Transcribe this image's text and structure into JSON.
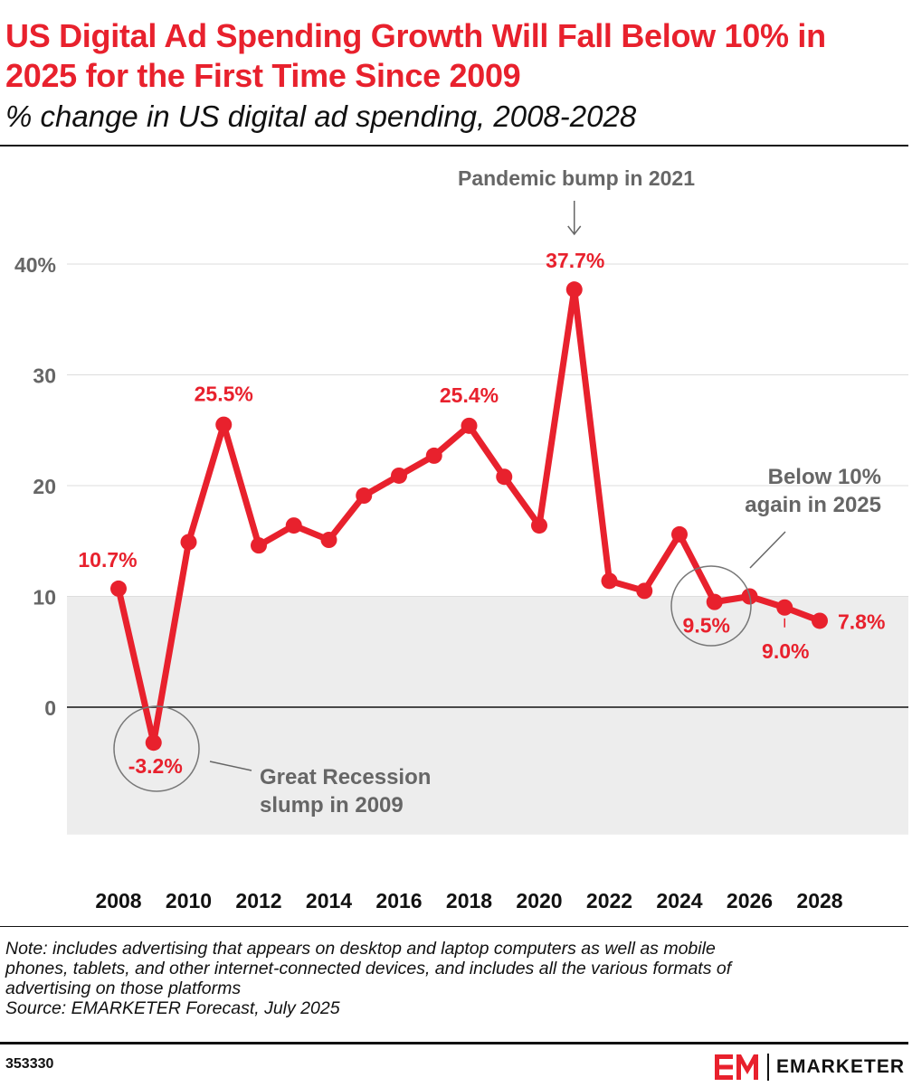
{
  "header": {
    "title": "US Digital Ad Spending Growth Will Fall Below 10% in 2025 for the First Time Since 2009",
    "subtitle": "% change in US digital ad spending, 2008-2028"
  },
  "chart_data": {
    "type": "line",
    "title": "US Digital Ad Spending Growth Will Fall Below 10% in 2025 for the First Time Since 2009",
    "subtitle": "% change in US digital ad spending, 2008-2028",
    "xlabel": "",
    "ylabel": "",
    "x": [
      2008,
      2009,
      2010,
      2011,
      2012,
      2013,
      2014,
      2015,
      2016,
      2017,
      2018,
      2019,
      2020,
      2021,
      2022,
      2023,
      2024,
      2025,
      2026,
      2027,
      2028
    ],
    "x_tick_labels": [
      "2008",
      "2010",
      "2012",
      "2014",
      "2016",
      "2018",
      "2020",
      "2022",
      "2024",
      "2026",
      "2028"
    ],
    "y_tick_labels": [
      "40%",
      "30",
      "20",
      "10",
      "0"
    ],
    "ylim": [
      -11.5,
      40
    ],
    "grid": true,
    "shaded_band": [
      -11.5,
      10
    ],
    "series": [
      {
        "values": [
          10.7,
          -3.2,
          14.9,
          25.5,
          14.6,
          16.4,
          15.1,
          19.1,
          20.9,
          22.7,
          25.4,
          20.8,
          16.4,
          37.7,
          11.4,
          10.5,
          15.6,
          9.5,
          10.0,
          9.0,
          7.8
        ]
      }
    ],
    "data_labels": [
      {
        "x": 2008,
        "text": "10.7%"
      },
      {
        "x": 2009,
        "text": "-3.2%"
      },
      {
        "x": 2011,
        "text": "25.5%"
      },
      {
        "x": 2018,
        "text": "25.4%"
      },
      {
        "x": 2021,
        "text": "37.7%"
      },
      {
        "x": 2025,
        "text": "9.5%"
      },
      {
        "x": 2027,
        "text": "9.0%"
      },
      {
        "x": 2028,
        "text": "7.8%"
      }
    ],
    "annotations": [
      {
        "lines": [
          "Pandemic bump in 2021"
        ]
      },
      {
        "lines": [
          "Great Recession",
          "slump in 2009"
        ]
      },
      {
        "lines": [
          "Below 10%",
          "again in 2025"
        ]
      }
    ],
    "colors": {
      "series": "#e8212d",
      "axis_text": "#666666",
      "annotation": "#666666",
      "band": "#ededed",
      "grid": "#dddddd"
    }
  },
  "footer": {
    "note_lines": [
      "Note: includes advertising that appears on desktop and laptop computers as well as mobile",
      "phones, tablets, and other internet-connected devices, and includes all the various formats of",
      "advertising on those platforms"
    ],
    "source": "Source: EMARKETER Forecast, July 2025",
    "chart_id": "353330",
    "brand": "EMARKETER",
    "brand_icon": "emarketer-logo-icon"
  }
}
